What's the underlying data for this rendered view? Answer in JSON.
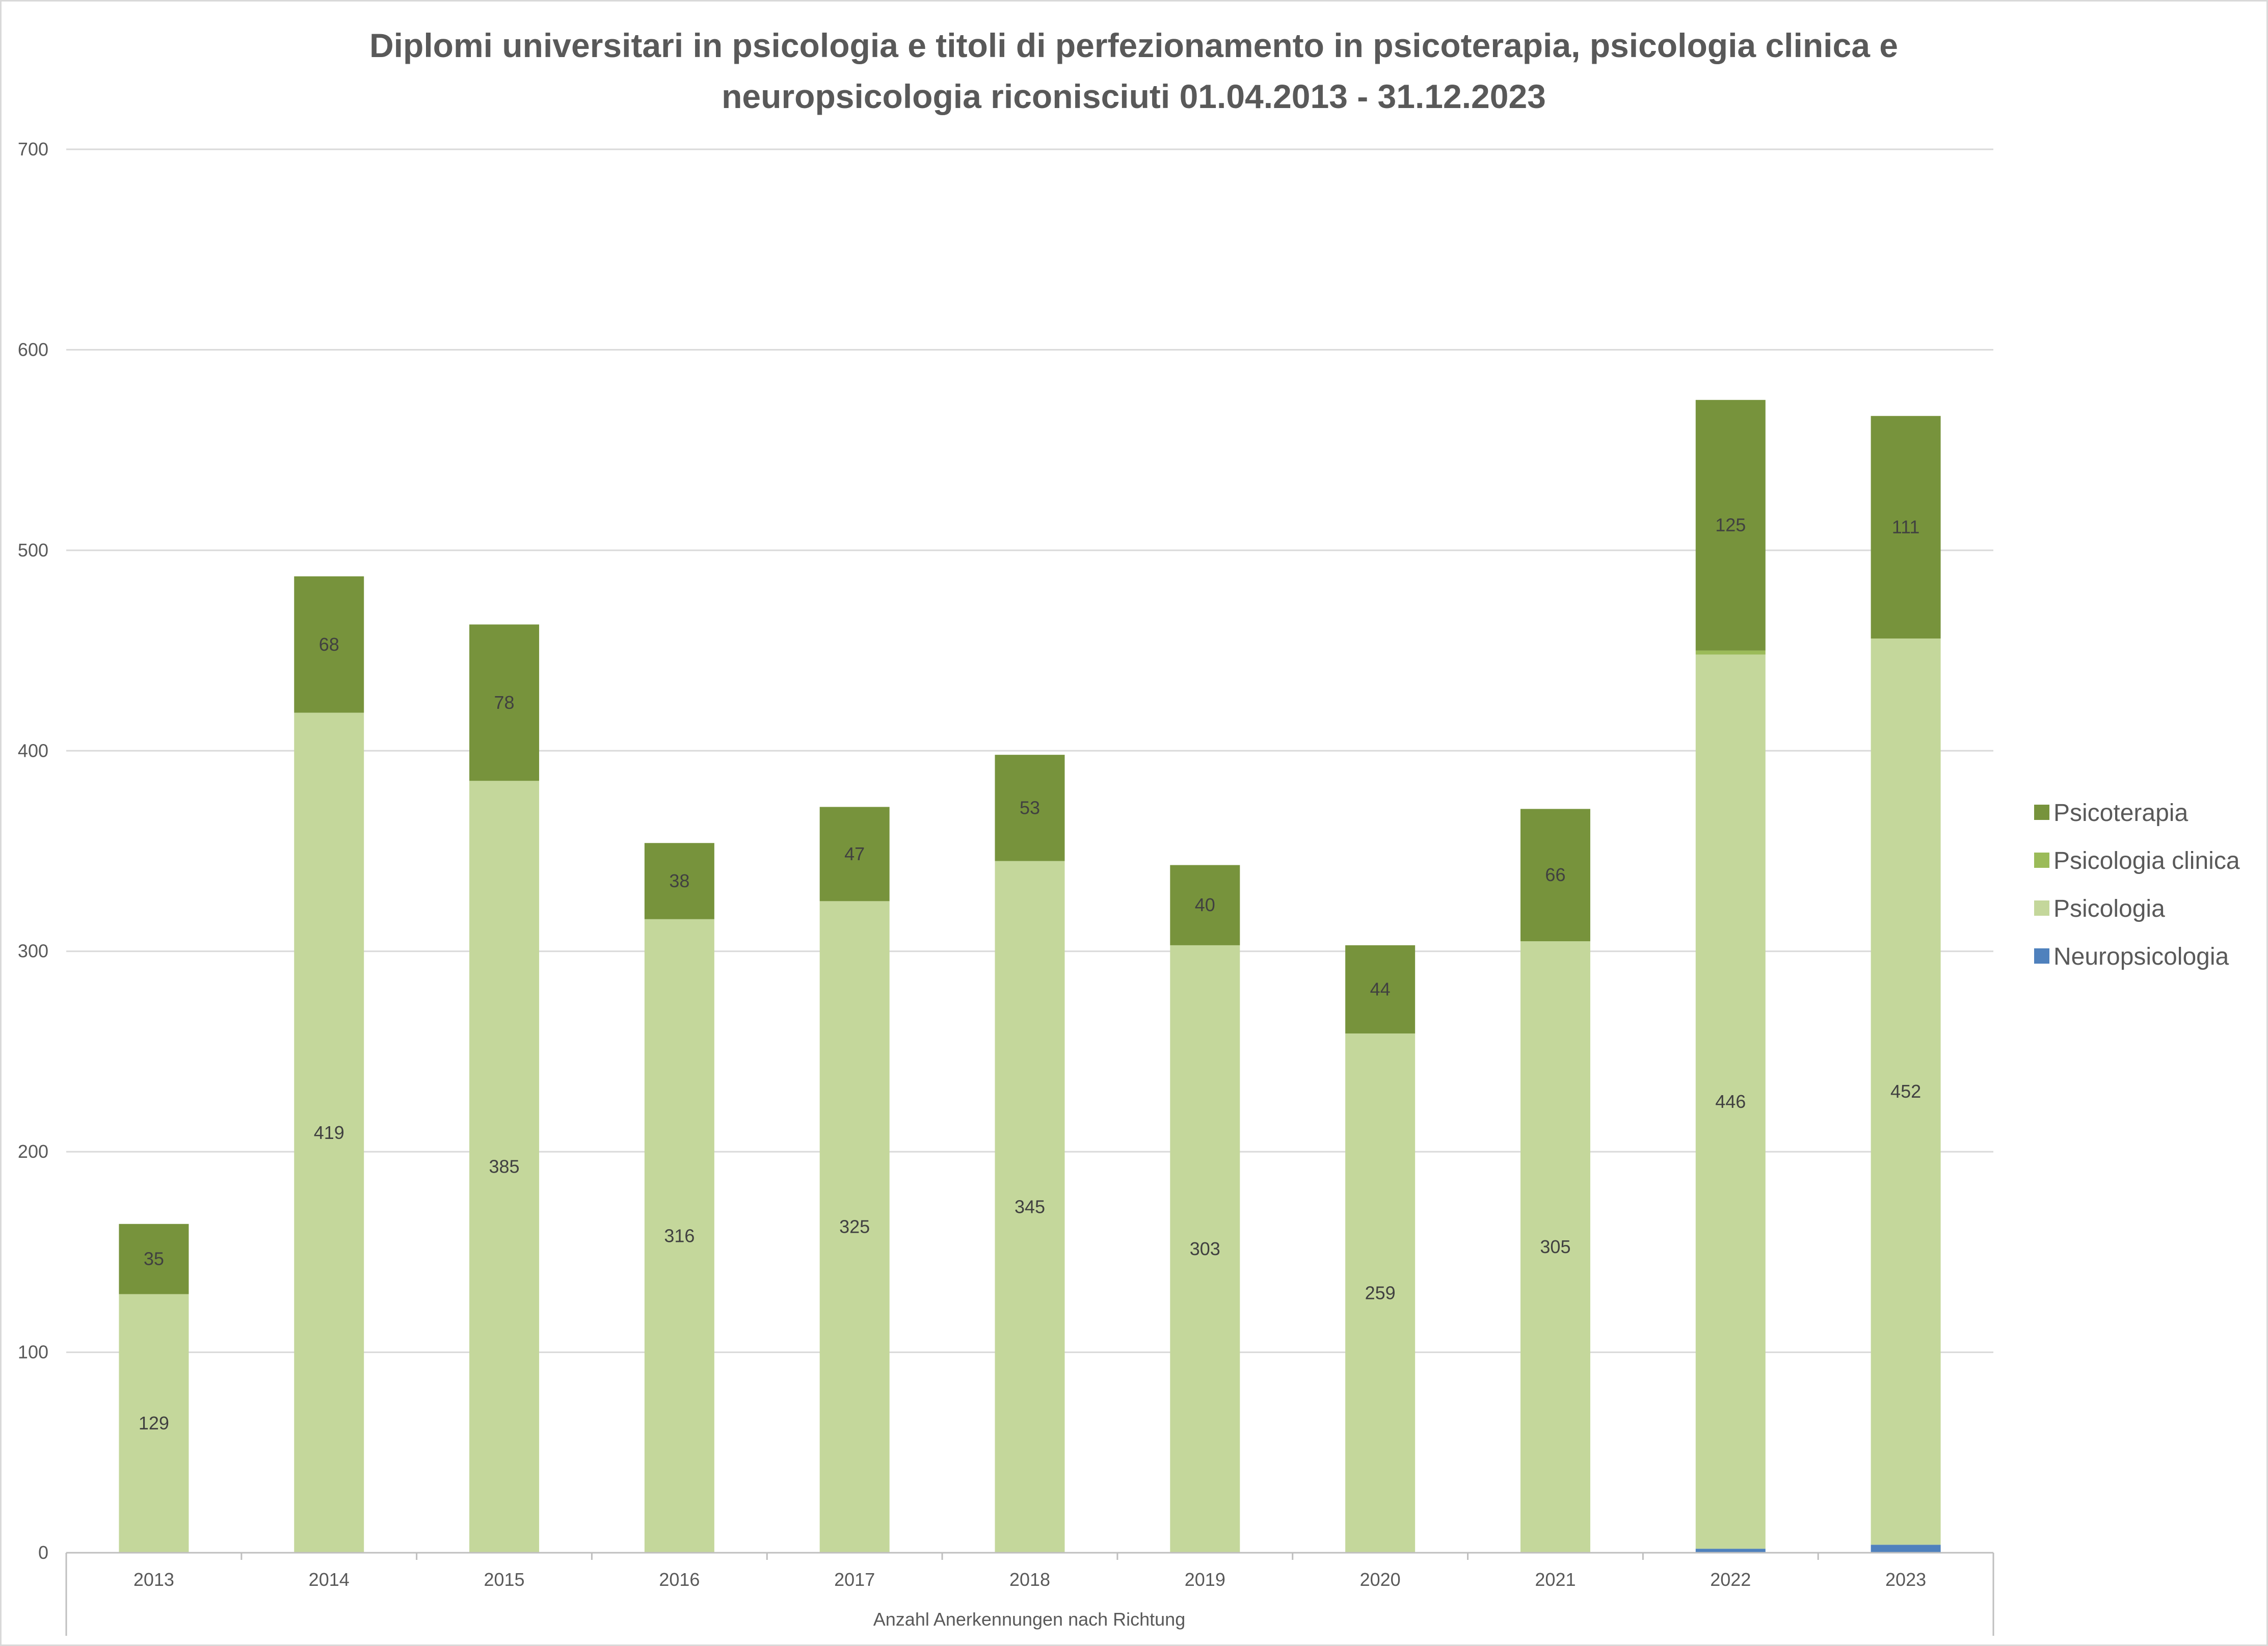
{
  "chart_data": {
    "type": "bar",
    "stacked": true,
    "title_lines": [
      "Diplomi universitari in psicologia e titoli di perfezionamento in psicoterapia, psicologia clinica e",
      "neuropsicologia riconisciuti 01.04.2013 - 31.12.2023"
    ],
    "xlabel": "Anzahl Anerkennungen nach Richtung",
    "ylabel": "",
    "ylim": [
      0,
      700
    ],
    "yticks": [
      0,
      100,
      200,
      300,
      400,
      500,
      600,
      700
    ],
    "grid": true,
    "legend_position": "right",
    "categories": [
      "2013",
      "2014",
      "2015",
      "2016",
      "2017",
      "2018",
      "2019",
      "2020",
      "2021",
      "2022",
      "2023"
    ],
    "series": [
      {
        "name": "Neuropsicologia",
        "color": "#4f81bd",
        "values": [
          0,
          0,
          0,
          0,
          0,
          0,
          0,
          0,
          0,
          2,
          4
        ],
        "labels": [
          "",
          "",
          "",
          "",
          "",
          "",
          "",
          "",
          "",
          "",
          ""
        ]
      },
      {
        "name": "Psicologia",
        "color": "#c4d79b",
        "values": [
          129,
          419,
          385,
          316,
          325,
          345,
          303,
          259,
          305,
          446,
          452
        ],
        "labels": [
          "129",
          "419",
          "385",
          "316",
          "325",
          "345",
          "303",
          "259",
          "305",
          "446",
          "452"
        ]
      },
      {
        "name": "Psicologia clinica",
        "color": "#9bbb59",
        "values": [
          0,
          0,
          0,
          0,
          0,
          0,
          0,
          0,
          0,
          2,
          0
        ],
        "labels": [
          "",
          "",
          "",
          "",
          "",
          "",
          "",
          "",
          "",
          "",
          ""
        ]
      },
      {
        "name": "Psicoterapia",
        "color": "#77933c",
        "values": [
          35,
          68,
          78,
          38,
          47,
          53,
          40,
          44,
          66,
          125,
          111
        ],
        "labels": [
          "35",
          "68",
          "78",
          "38",
          "47",
          "53",
          "40",
          "44",
          "66",
          "125",
          "111"
        ]
      }
    ],
    "legend_order": [
      "Psicoterapia",
      "Psicologia clinica",
      "Psicologia",
      "Neuropsicologia"
    ]
  }
}
